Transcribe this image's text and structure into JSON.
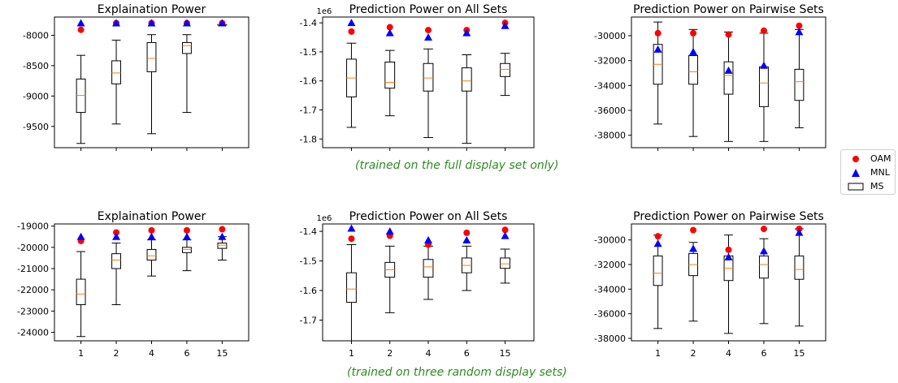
{
  "captions": {
    "top": "(trained on the full display set only)",
    "bottom": "(trained on three random display sets)"
  },
  "legend": {
    "oam": "OAM",
    "mnl": "MNL",
    "ms": "MS"
  },
  "colors": {
    "oam": "#ff0000",
    "mnl": "#0000ff",
    "median": "#ff7f0e"
  },
  "chart_data": [
    {
      "type": "box",
      "title": "Explaination Power",
      "categories": [
        "1",
        "2",
        "4",
        "6",
        "15"
      ],
      "show_xticklabels": false,
      "ylim": [
        -9850,
        -7700
      ],
      "yticks": [
        -9500,
        -9000,
        -8500,
        -8000
      ],
      "ytick_labels": [
        "-9500",
        "-9000",
        "-8500",
        "-8000"
      ],
      "offset_label": "",
      "boxes": [
        {
          "whislo": -9780,
          "q1": -9270,
          "med": -8990,
          "q3": -8720,
          "whishi": -8330
        },
        {
          "whislo": -9460,
          "q1": -8800,
          "med": -8620,
          "q3": -8420,
          "whishi": -8080
        },
        {
          "whislo": -9620,
          "q1": -8600,
          "med": -8380,
          "q3": -8120,
          "whishi": -7990
        },
        {
          "whislo": -9270,
          "q1": -8300,
          "med": -8170,
          "q3": -8120,
          "whishi": -7990
        },
        {
          "whislo": -7820,
          "q1": -7820,
          "med": -7820,
          "q3": -7820,
          "whishi": -7820
        }
      ],
      "series": [
        {
          "name": "OAM",
          "values": [
            -7910,
            -7800,
            -7800,
            -7800,
            -7800
          ]
        },
        {
          "name": "MNL",
          "values": [
            -7800,
            -7800,
            -7800,
            -7800,
            -7800
          ]
        }
      ]
    },
    {
      "type": "box",
      "title": "Prediction Power on All Sets",
      "categories": [
        "1",
        "2",
        "4",
        "6",
        "15"
      ],
      "show_xticklabels": false,
      "ylim": [
        -1.83,
        -1.38
      ],
      "yticks": [
        -1.8,
        -1.7,
        -1.6,
        -1.5,
        -1.4
      ],
      "ytick_labels": [
        "-1.8",
        "-1.7",
        "-1.6",
        "-1.5",
        "-1.4"
      ],
      "offset_label": "1e6",
      "boxes": [
        {
          "whislo": -1.76,
          "q1": -1.655,
          "med": -1.59,
          "q3": -1.525,
          "whishi": -1.47
        },
        {
          "whislo": -1.72,
          "q1": -1.625,
          "med": -1.605,
          "q3": -1.535,
          "whishi": -1.495
        },
        {
          "whislo": -1.795,
          "q1": -1.635,
          "med": -1.59,
          "q3": -1.54,
          "whishi": -1.49
        },
        {
          "whislo": -1.815,
          "q1": -1.635,
          "med": -1.6,
          "q3": -1.555,
          "whishi": -1.51
        },
        {
          "whislo": -1.65,
          "q1": -1.585,
          "med": -1.56,
          "q3": -1.54,
          "whishi": -1.505
        }
      ],
      "series": [
        {
          "name": "OAM",
          "values": [
            -1.43,
            -1.415,
            -1.425,
            -1.425,
            -1.4
          ]
        },
        {
          "name": "MNL",
          "values": [
            -1.4,
            -1.435,
            -1.45,
            -1.435,
            -1.41
          ]
        }
      ]
    },
    {
      "type": "box",
      "title": "Prediction Power on Pairwise Sets",
      "categories": [
        "1",
        "2",
        "4",
        "6",
        "15"
      ],
      "show_xticklabels": false,
      "ylim": [
        -39000,
        -28500
      ],
      "yticks": [
        -38000,
        -36000,
        -34000,
        -32000,
        -30000
      ],
      "ytick_labels": [
        "-38000",
        "-36000",
        "-34000",
        "-32000",
        "-30000"
      ],
      "offset_label": "",
      "boxes": [
        {
          "whislo": -37100,
          "q1": -33900,
          "med": -32300,
          "q3": -30700,
          "whishi": -28900
        },
        {
          "whislo": -38100,
          "q1": -33900,
          "med": -32900,
          "q3": -31600,
          "whishi": -29500
        },
        {
          "whislo": -38500,
          "q1": -34700,
          "med": -33200,
          "q3": -32100,
          "whishi": -29700
        },
        {
          "whislo": -38500,
          "q1": -35700,
          "med": -33800,
          "q3": -32500,
          "whishi": -29800
        },
        {
          "whislo": -37400,
          "q1": -35200,
          "med": -33700,
          "q3": -32700,
          "whishi": -29500
        }
      ],
      "series": [
        {
          "name": "OAM",
          "values": [
            -29800,
            -29800,
            -29900,
            -29600,
            -29200
          ]
        },
        {
          "name": "MNL",
          "values": [
            -31100,
            -31300,
            -32800,
            -32400,
            -29700
          ]
        }
      ]
    },
    {
      "type": "box",
      "title": "Explaination Power",
      "categories": [
        "1",
        "2",
        "4",
        "6",
        "15"
      ],
      "show_xticklabels": true,
      "ylim": [
        -24400,
        -18900
      ],
      "yticks": [
        -24000,
        -23000,
        -22000,
        -21000,
        -20000,
        -19000
      ],
      "ytick_labels": [
        "-24000",
        "-23000",
        "-22000",
        "-21000",
        "-20000",
        "-19000"
      ],
      "offset_label": "",
      "boxes": [
        {
          "whislo": -24200,
          "q1": -22700,
          "med": -22200,
          "q3": -21500,
          "whishi": -20200
        },
        {
          "whislo": -22700,
          "q1": -21000,
          "med": -20600,
          "q3": -20300,
          "whishi": -19800
        },
        {
          "whislo": -21350,
          "q1": -20600,
          "med": -20400,
          "q3": -20100,
          "whishi": -19650
        },
        {
          "whislo": -21100,
          "q1": -20250,
          "med": -20100,
          "q3": -20000,
          "whishi": -19650
        },
        {
          "whislo": -20600,
          "q1": -20050,
          "med": -19900,
          "q3": -19800,
          "whishi": -19500
        }
      ],
      "series": [
        {
          "name": "OAM",
          "values": [
            -19700,
            -19300,
            -19200,
            -19200,
            -19150
          ]
        },
        {
          "name": "MNL",
          "values": [
            -19500,
            -19500,
            -19500,
            -19500,
            -19500
          ]
        }
      ]
    },
    {
      "type": "box",
      "title": "Prediction Power on All Sets",
      "categories": [
        "1",
        "2",
        "4",
        "6",
        "15"
      ],
      "show_xticklabels": true,
      "ylim": [
        -1.77,
        -1.375
      ],
      "yticks": [
        -1.7,
        -1.6,
        -1.5,
        -1.4
      ],
      "ytick_labels": [
        "-1.7",
        "-1.6",
        "-1.5",
        "-1.4"
      ],
      "offset_label": "1e6",
      "boxes": [
        {
          "whislo": -1.77,
          "q1": -1.64,
          "med": -1.595,
          "q3": -1.54,
          "whishi": -1.445
        },
        {
          "whislo": -1.675,
          "q1": -1.555,
          "med": -1.53,
          "q3": -1.505,
          "whishi": -1.45
        },
        {
          "whislo": -1.63,
          "q1": -1.555,
          "med": -1.52,
          "q3": -1.495,
          "whishi": -1.45
        },
        {
          "whislo": -1.6,
          "q1": -1.54,
          "med": -1.515,
          "q3": -1.49,
          "whishi": -1.45
        },
        {
          "whislo": -1.575,
          "q1": -1.525,
          "med": -1.51,
          "q3": -1.49,
          "whishi": -1.46
        }
      ],
      "series": [
        {
          "name": "OAM",
          "values": [
            -1.425,
            -1.415,
            -1.445,
            -1.405,
            -1.395
          ]
        },
        {
          "name": "MNL",
          "values": [
            -1.39,
            -1.4,
            -1.43,
            -1.43,
            -1.415
          ]
        }
      ]
    },
    {
      "type": "box",
      "title": "Prediction Power on Pairwise Sets",
      "categories": [
        "1",
        "2",
        "4",
        "6",
        "15"
      ],
      "show_xticklabels": true,
      "ylim": [
        -38200,
        -28700
      ],
      "yticks": [
        -38000,
        -36000,
        -34000,
        -32000,
        -30000
      ],
      "ytick_labels": [
        "-38000",
        "-36000",
        "-34000",
        "-32000",
        "-30000"
      ],
      "offset_label": "",
      "boxes": [
        {
          "whislo": -37200,
          "q1": -33700,
          "med": -32700,
          "q3": -31300,
          "whishi": -29600
        },
        {
          "whislo": -36600,
          "q1": -32900,
          "med": -32000,
          "q3": -31100,
          "whishi": -30200
        },
        {
          "whislo": -37600,
          "q1": -33300,
          "med": -32300,
          "q3": -31300,
          "whishi": -29600
        },
        {
          "whislo": -36800,
          "q1": -33100,
          "med": -32000,
          "q3": -31300,
          "whishi": -29900
        },
        {
          "whislo": -37000,
          "q1": -33200,
          "med": -32400,
          "q3": -31300,
          "whishi": -29100
        }
      ],
      "series": [
        {
          "name": "OAM",
          "values": [
            -29700,
            -29200,
            -30800,
            -29100,
            -29100
          ]
        },
        {
          "name": "MNL",
          "values": [
            -30300,
            -30700,
            -31400,
            -30900,
            -29400
          ]
        }
      ]
    }
  ]
}
